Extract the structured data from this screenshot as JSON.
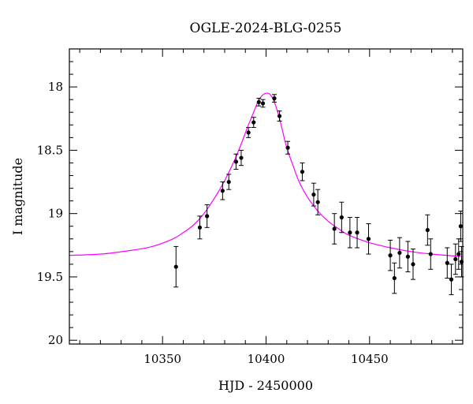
{
  "chart_data": {
    "type": "scatter",
    "title": "OGLE-2024-BLG-0255",
    "xlabel": "HJD - 2450000",
    "ylabel": "I magnitude",
    "xlim": [
      10305,
      10495
    ],
    "ylim": [
      20.03,
      17.7
    ],
    "y_inverted": true,
    "grid": false,
    "x_major_ticks": [
      10350,
      10400,
      10450
    ],
    "x_tick_labels": [
      "10350",
      "10400",
      "10450"
    ],
    "x_minor_step": 10,
    "y_major_ticks": [
      18,
      18.5,
      19,
      19.5,
      20
    ],
    "y_tick_labels": [
      "18",
      "18.5",
      "19",
      "19.5",
      "20"
    ],
    "y_minor_step": 0.1,
    "colors": {
      "points": "#000000",
      "model": "#ff00ff"
    },
    "series": [
      {
        "kind": "points",
        "x": [
          10356.5,
          10368,
          10371.5,
          10379,
          10382,
          10385.5,
          10388,
          10391.5,
          10394,
          10396.5,
          10398.5,
          10404,
          10406.5,
          10410.5,
          10417.5,
          10423,
          10425,
          10433,
          10436.5,
          10440.5,
          10444,
          10449.5,
          10460,
          10462,
          10464.5,
          10468.5,
          10471,
          10478,
          10479.5,
          10487.5,
          10489.5,
          10491.5,
          10493,
          10494,
          10495
        ],
        "y": [
          19.42,
          19.11,
          19.02,
          18.82,
          18.75,
          18.59,
          18.56,
          18.36,
          18.28,
          18.12,
          18.13,
          18.09,
          18.23,
          18.48,
          18.67,
          18.85,
          18.91,
          19.12,
          19.03,
          19.15,
          19.15,
          19.2,
          19.33,
          19.51,
          19.31,
          19.34,
          19.4,
          19.13,
          19.32,
          19.39,
          19.52,
          19.36,
          19.32,
          19.1,
          19.38
        ],
        "err": [
          0.16,
          0.09,
          0.09,
          0.07,
          0.06,
          0.06,
          0.06,
          0.04,
          0.04,
          0.03,
          0.03,
          0.03,
          0.04,
          0.05,
          0.07,
          0.09,
          0.1,
          0.12,
          0.12,
          0.12,
          0.12,
          0.12,
          0.12,
          0.12,
          0.12,
          0.12,
          0.12,
          0.12,
          0.12,
          0.12,
          0.12,
          0.12,
          0.12,
          0.12,
          0.12
        ]
      },
      {
        "kind": "model",
        "x": [
          10305,
          10320,
          10335,
          10345,
          10355,
          10360,
          10365,
          10370,
          10375,
          10380,
          10385,
          10388,
          10391,
          10394,
          10396,
          10398,
          10400,
          10402,
          10404,
          10406,
          10408,
          10410,
          10413,
          10416,
          10420,
          10425,
          10430,
          10435,
          10440,
          10450,
          10460,
          10470,
          10480,
          10495
        ],
        "y": [
          19.33,
          19.32,
          19.29,
          19.26,
          19.2,
          19.15,
          19.09,
          19.0,
          18.88,
          18.74,
          18.57,
          18.45,
          18.32,
          18.2,
          18.12,
          18.07,
          18.05,
          18.06,
          18.12,
          18.22,
          18.35,
          18.48,
          18.62,
          18.75,
          18.87,
          18.98,
          19.06,
          19.12,
          19.17,
          19.23,
          19.27,
          19.3,
          19.32,
          19.34
        ]
      }
    ]
  }
}
